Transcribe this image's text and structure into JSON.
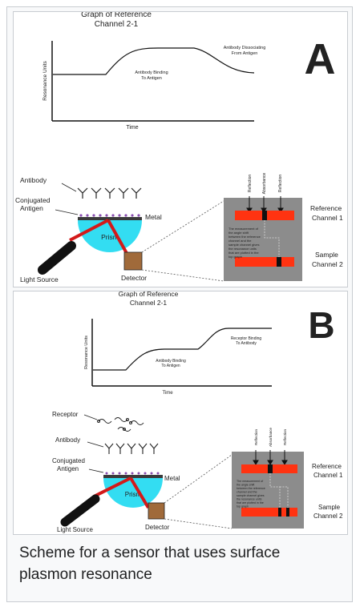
{
  "caption": {
    "line1": "Scheme for a sensor that uses surface",
    "line2": "plasmon resonance"
  },
  "panel_a": {
    "letter": "A",
    "graph": {
      "title_line1": "Graph of Reference",
      "title_line2": "Channel 2-1",
      "y_axis": "Resonance Units",
      "x_axis": "Time",
      "note_binding_1": "Antibody Binding",
      "note_binding_2": "To Antigen",
      "note_dissoc_1": "Antibody Dissociating",
      "note_dissoc_2": "From Antigen"
    },
    "labels": {
      "antibody": "Antibody",
      "conj_1": "Conjugated",
      "conj_2": "Antigen",
      "metal": "Metal",
      "prism": "Prism",
      "light_source": "Light Source",
      "detector": "Detector",
      "reflection_left": "Reflection",
      "absorbance": "Absorbance",
      "reflection_right": "Reflection",
      "ref_channel_1": "Reference",
      "ref_channel_2": "Channel 1",
      "sample_channel_1": "Sample",
      "sample_channel_2": "Channel 2",
      "measure_1": "The measurement of",
      "measure_2": "the angle shift",
      "measure_3": "between the reference",
      "measure_4": "channel and the",
      "measure_5": "sample channel gives",
      "measure_6": "the resonance units",
      "measure_7": "that are plotted in the",
      "measure_8": "top graph"
    }
  },
  "panel_b": {
    "letter": "B",
    "graph": {
      "title_line1": "Graph of Reference",
      "title_line2": "Channel 2-1",
      "y_axis": "Resonance Units",
      "x_axis": "Time",
      "note_binding_1": "Antibody Binding",
      "note_binding_2": "To Antigen",
      "note_receptor_1": "Receptor Binding",
      "note_receptor_2": "To Antibody"
    },
    "labels": {
      "receptor": "Receptor",
      "antibody": "Antibody",
      "conj_1": "Conjugated",
      "conj_2": "Antigen",
      "metal": "Metal",
      "prism": "Prism",
      "light_source": "Light Source",
      "detector": "Detector",
      "reflection_left": "Reflection",
      "absorbance": "Absorbance",
      "reflection_right": "Reflection",
      "ref_channel_1": "Reference",
      "ref_channel_2": "Channel 1",
      "sample_channel_1": "Sample",
      "sample_channel_2": "Channel 2",
      "measure_1": "The measurement of",
      "measure_2": "the angle shift",
      "measure_3": "between the reference",
      "measure_4": "channel and the",
      "measure_5": "sample channel gives",
      "measure_6": "the resonance units",
      "measure_7": "that are plotted in the",
      "measure_8": "top graph"
    }
  },
  "colors": {
    "prism": "#33ddf2",
    "beam": "#d31a1a",
    "channel": "#ff3311",
    "panel_gray": "#8c8c8c",
    "detector": "#a06a3a",
    "border": "#c8ccd1"
  }
}
